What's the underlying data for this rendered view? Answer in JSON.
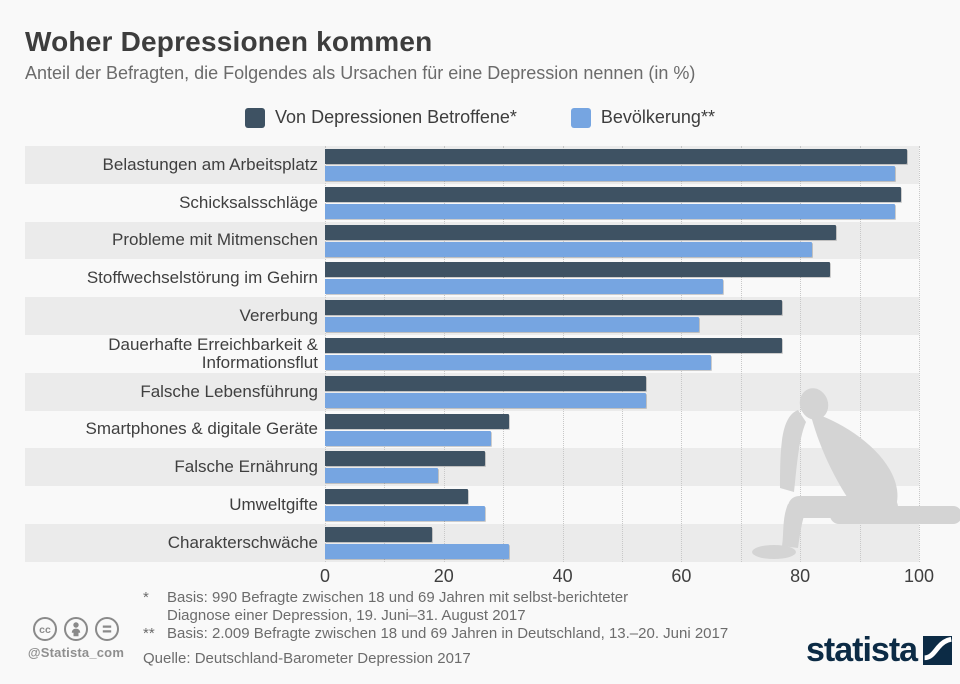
{
  "header": {
    "title": "Woher Depressionen kommen",
    "subtitle": "Anteil der Befragten, die Folgendes als Ursachen für eine Depression nennen (in %)"
  },
  "chart_data": {
    "type": "bar",
    "orientation": "horizontal",
    "title": "Woher Depressionen kommen",
    "subtitle": "Anteil der Befragten, die Folgendes als Ursachen für eine Depression nennen (in %)",
    "categories": [
      {
        "lines": [
          "Belastungen am Arbeitsplatz"
        ]
      },
      {
        "lines": [
          "Schicksalsschläge"
        ]
      },
      {
        "lines": [
          "Probleme mit Mitmenschen"
        ]
      },
      {
        "lines": [
          "Stoffwechselstörung im Gehirn"
        ]
      },
      {
        "lines": [
          "Vererbung"
        ]
      },
      {
        "lines": [
          "Dauerhafte Erreichbarkeit &",
          "Informationsflut"
        ]
      },
      {
        "lines": [
          "Falsche Lebensführung"
        ]
      },
      {
        "lines": [
          "Smartphones & digitale Geräte"
        ]
      },
      {
        "lines": [
          "Falsche Ernährung"
        ]
      },
      {
        "lines": [
          "Umweltgifte"
        ]
      },
      {
        "lines": [
          "Charakterschwäche"
        ]
      }
    ],
    "series": [
      {
        "name": "Von Depressionen Betroffene*",
        "color": "#3e5263",
        "values": [
          98,
          97,
          86,
          85,
          77,
          77,
          54,
          31,
          27,
          24,
          18
        ]
      },
      {
        "name": "Bevölkerung**",
        "color": "#76a5e1",
        "values": [
          96,
          96,
          82,
          67,
          63,
          65,
          54,
          28,
          19,
          27,
          31
        ]
      }
    ],
    "xlim": [
      0,
      100
    ],
    "ticks": [
      0,
      20,
      40,
      60,
      80,
      100
    ],
    "minor_grid_step": 10,
    "grid": "dotted-vertical",
    "legend_position": "top",
    "zebra_striping": true
  },
  "legend": {
    "items": [
      {
        "label": "Von Depressionen Betroffene*"
      },
      {
        "label": "Bevölkerung**"
      }
    ]
  },
  "footnotes": {
    "fn1_marker": "*",
    "fn1_line1": "Basis: 990 Befragte zwischen 18 und 69 Jahren mit selbst-berichteter",
    "fn1_line2": "Diagnose einer Depression, 19. Juni–31. August 2017",
    "fn2_marker": "**",
    "fn2_text": "Basis: 2.009 Befragte zwischen 18 und 69 Jahren in Deutschland, 13.–20. Juni 2017",
    "source": "Quelle: Deutschland-Barometer Depression 2017"
  },
  "branding": {
    "handle": "@Statista_com",
    "logo_text": "statista",
    "logo_color": "#0c2b45",
    "license_icons": [
      "cc-icon",
      "attribution-icon",
      "nd-icon"
    ]
  },
  "colors": {
    "background": "#f9f9f9",
    "stripe": "#ebebeb",
    "gridline": "#c8c8c8",
    "silhouette": "#d4d4d4"
  }
}
